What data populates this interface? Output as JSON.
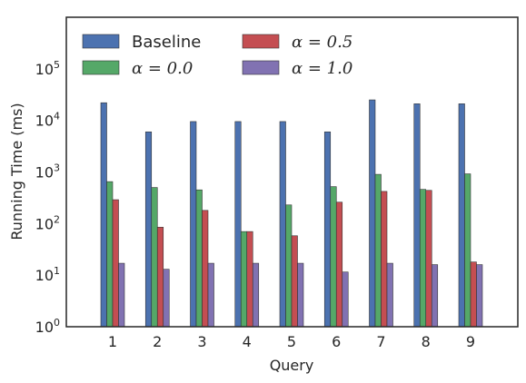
{
  "chart_data": {
    "type": "bar",
    "xlabel": "Query",
    "ylabel": "Running Time (ms)",
    "yscale": "log",
    "ylim": [
      1,
      1000000
    ],
    "yticks": [
      {
        "base": "10",
        "exp": "0",
        "value": 1
      },
      {
        "base": "10",
        "exp": "1",
        "value": 10
      },
      {
        "base": "10",
        "exp": "2",
        "value": 100
      },
      {
        "base": "10",
        "exp": "3",
        "value": 1000
      },
      {
        "base": "10",
        "exp": "4",
        "value": 10000
      },
      {
        "base": "10",
        "exp": "5",
        "value": 100000
      }
    ],
    "categories": [
      "1",
      "2",
      "3",
      "4",
      "5",
      "6",
      "7",
      "8",
      "9"
    ],
    "grid": false,
    "legend_position": "top-left",
    "legend_columns": 2,
    "series": [
      {
        "name": "Baseline",
        "color": "#4c72b0",
        "values": [
          22000,
          6000,
          9500,
          9500,
          9500,
          6000,
          25000,
          21000,
          21000
        ]
      },
      {
        "name": "α = 0.0",
        "color": "#55a868",
        "values": [
          650,
          500,
          450,
          70,
          230,
          520,
          900,
          460,
          920
        ]
      },
      {
        "name": "α = 0.5",
        "color": "#c44e52",
        "values": [
          290,
          85,
          180,
          70,
          58,
          260,
          420,
          440,
          18
        ]
      },
      {
        "name": "α = 1.0",
        "color": "#8172b2",
        "values": [
          17,
          13,
          17,
          17,
          17,
          11.5,
          17,
          16,
          16
        ]
      }
    ]
  }
}
